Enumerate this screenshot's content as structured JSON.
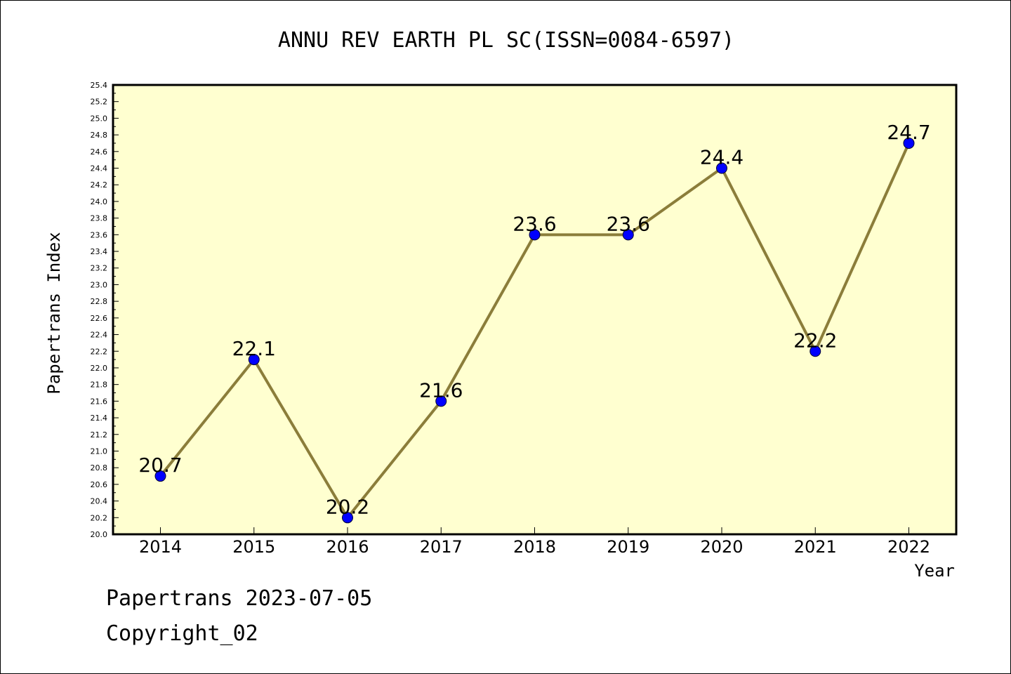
{
  "chart_data": {
    "type": "line",
    "title": "ANNU REV EARTH PL SC(ISSN=0084-6597)",
    "xlabel": "Year",
    "ylabel": "Papertrans Index",
    "categories": [
      "2014",
      "2015",
      "2016",
      "2017",
      "2018",
      "2019",
      "2020",
      "2021",
      "2022"
    ],
    "series": [
      {
        "values": [
          20.7,
          22.1,
          20.2,
          21.6,
          23.6,
          23.6,
          24.4,
          22.2,
          24.7
        ],
        "labels": [
          "20.7",
          "22.1",
          "20.2",
          "21.6",
          "23.6",
          "23.6",
          "24.4",
          "22.2",
          "24.7"
        ]
      }
    ],
    "ylim": [
      20.0,
      25.4
    ],
    "yticks": [
      "20.0",
      "20.2",
      "20.4",
      "20.6",
      "20.8",
      "21.0",
      "21.2",
      "21.4",
      "21.6",
      "21.8",
      "22.0",
      "22.2",
      "22.4",
      "22.6",
      "22.8",
      "23.0",
      "23.2",
      "23.4",
      "23.6",
      "23.8",
      "24.0",
      "24.2",
      "24.4",
      "24.6",
      "24.8",
      "25.0",
      "25.2",
      "25.4"
    ],
    "grid": false,
    "colors": {
      "plot_background": "#ffffd0",
      "line": "#8b7d3a",
      "marker": "#0000ff"
    }
  },
  "footer": {
    "line1": "Papertrans 2023-07-05",
    "line2": "Copyright_02"
  }
}
